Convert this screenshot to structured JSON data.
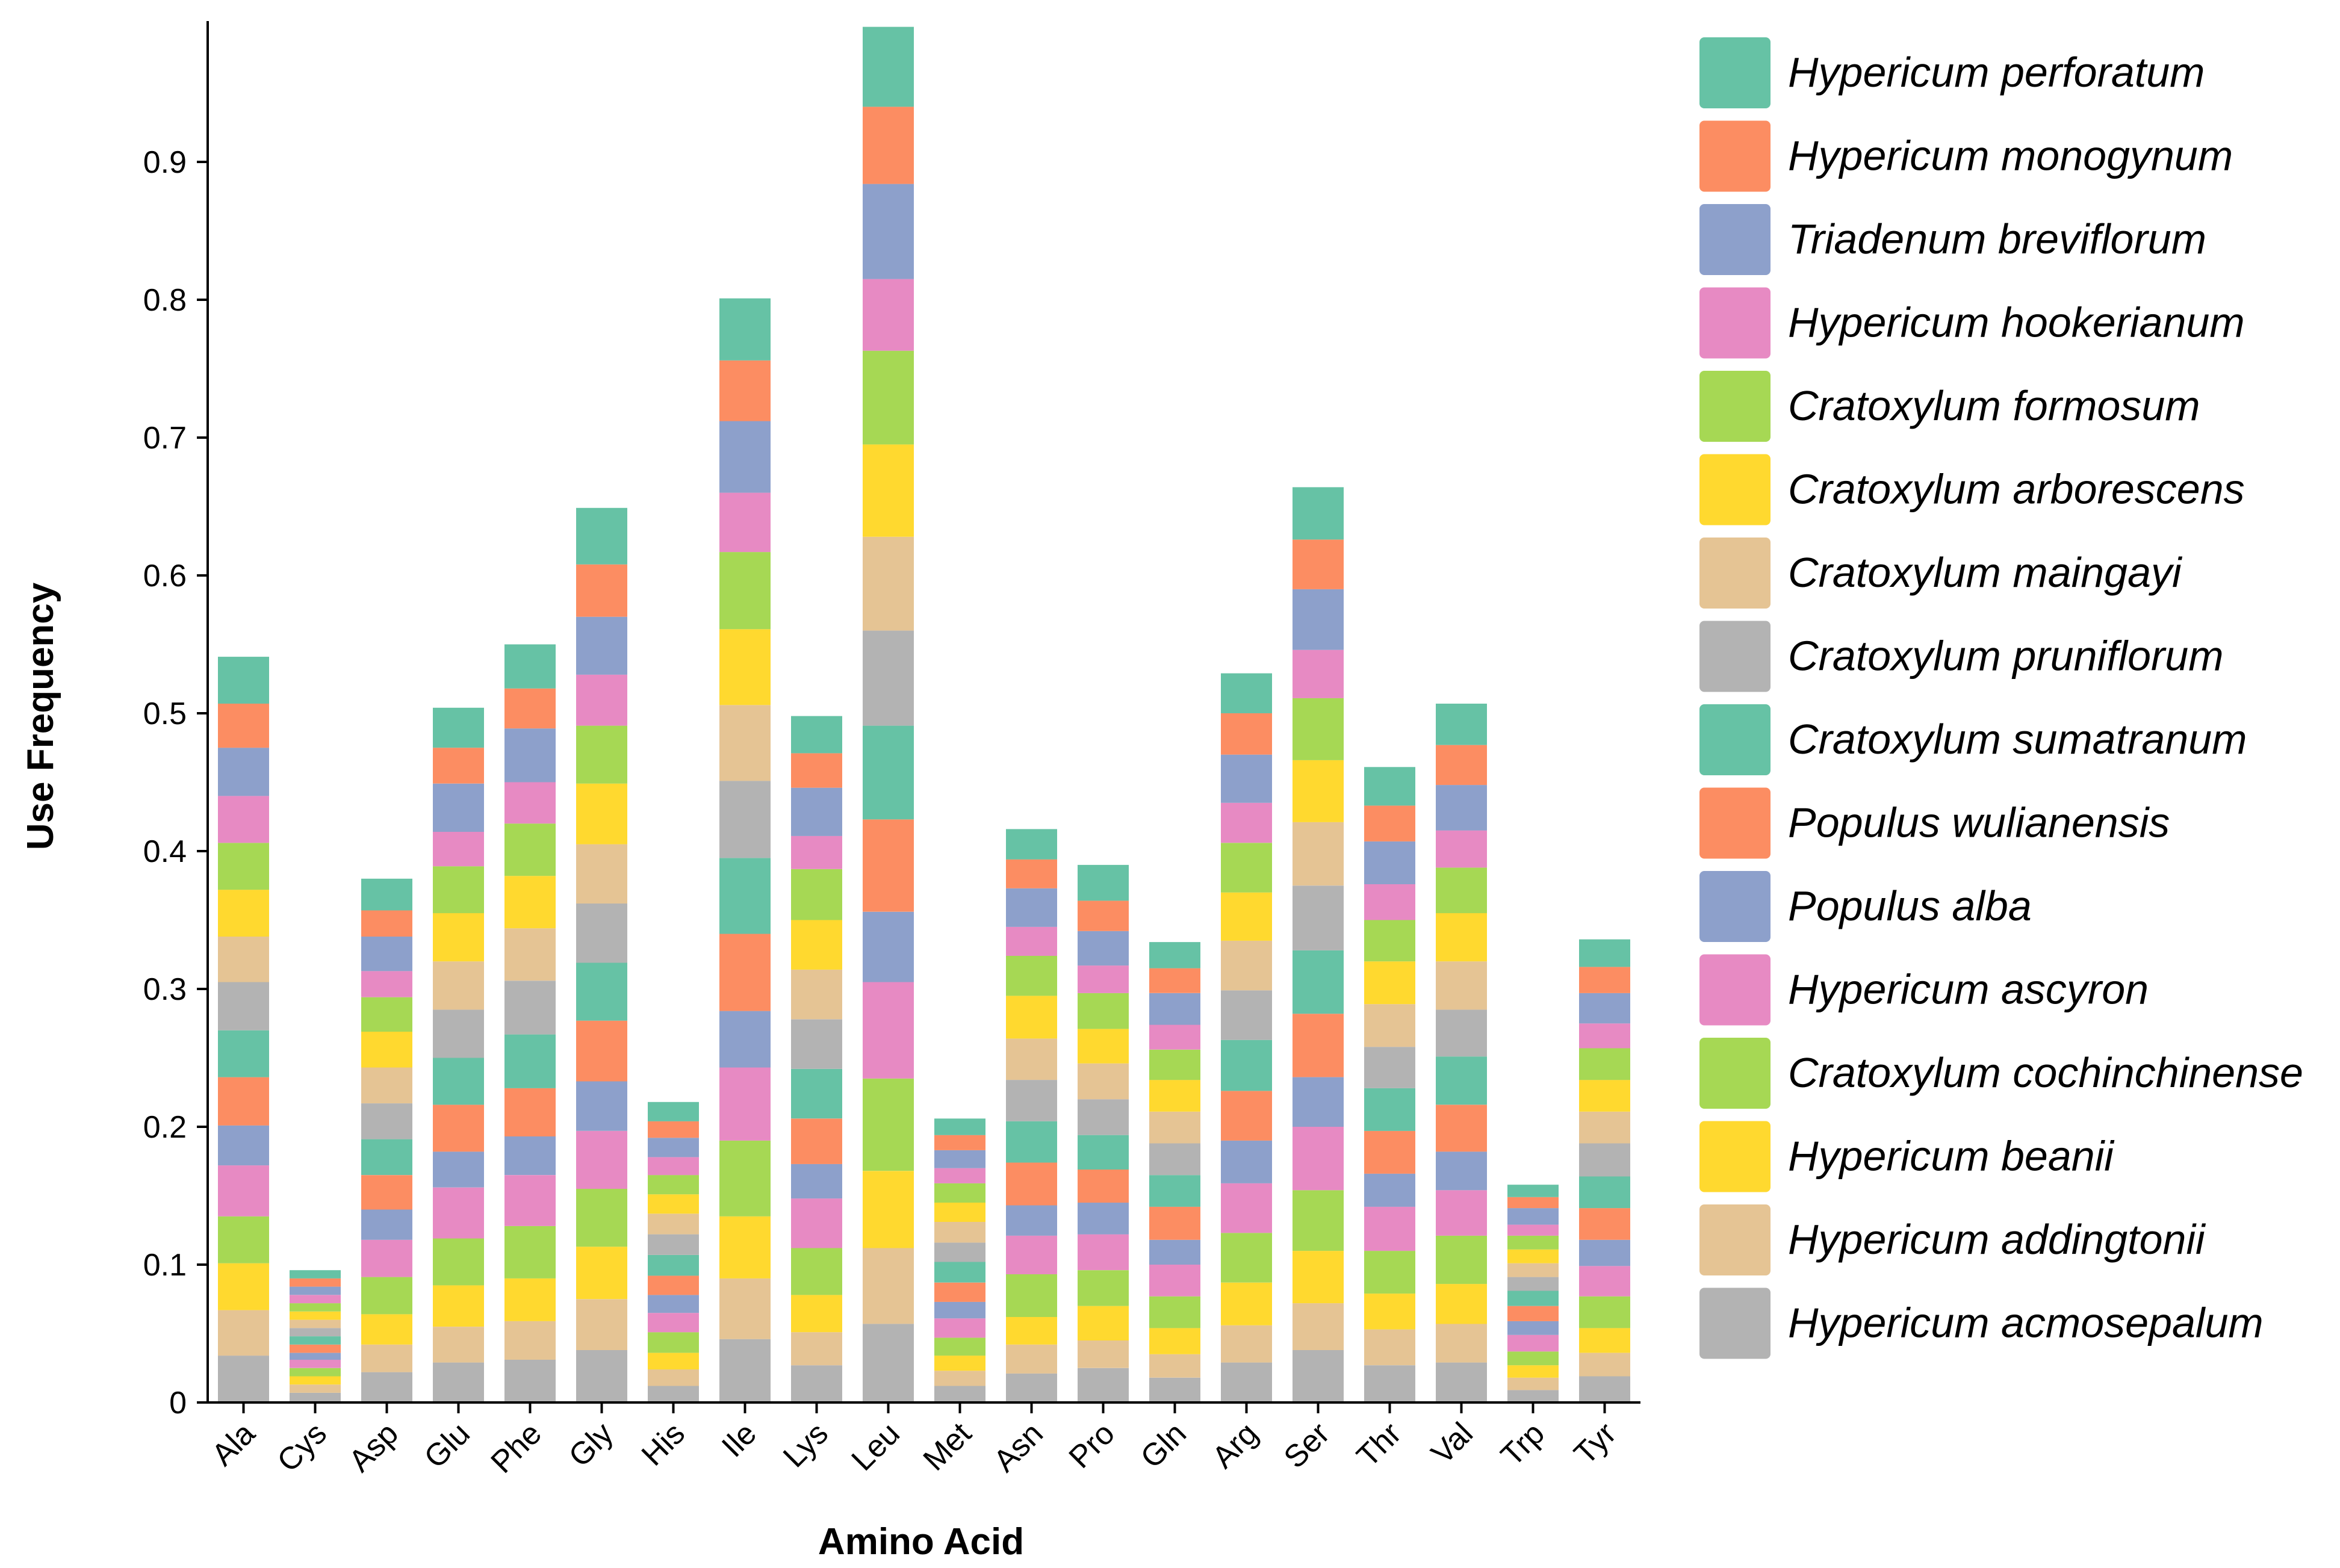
{
  "chart_data": {
    "type": "bar",
    "stacked": true,
    "xlabel": "Amino Acid",
    "ylabel": "Use Frequency",
    "ylim": [
      0,
      1.0
    ],
    "yticks": [
      0,
      0.1,
      0.2,
      0.3,
      0.4,
      0.5,
      0.6,
      0.7,
      0.8,
      0.9
    ],
    "ytick_labels": [
      "0",
      "0.1",
      "0.2",
      "0.3",
      "0.4",
      "0.5",
      "0.6",
      "0.7",
      "0.8",
      "0.9"
    ],
    "legend_position": "right",
    "categories": [
      "Ala",
      "Cys",
      "Asp",
      "Glu",
      "Phe",
      "Gly",
      "His",
      "Ile",
      "Lys",
      "Leu",
      "Met",
      "Asn",
      "Pro",
      "Gln",
      "Arg",
      "Ser",
      "Thr",
      "Val",
      "Trp",
      "Tyr"
    ],
    "series": [
      {
        "name": "Hypericum acmosepalum",
        "color": "#b3b3b3",
        "values": [
          0.034,
          0.007,
          0.022,
          0.029,
          0.031,
          0.038,
          0.012,
          0.046,
          0.027,
          0.057,
          0.012,
          0.021,
          0.025,
          0.018,
          0.029,
          0.038,
          0.027,
          0.029,
          0.009,
          0.019
        ]
      },
      {
        "name": "Hypericum addingtonii",
        "color": "#e5c494",
        "values": [
          0.033,
          0.006,
          0.02,
          0.026,
          0.028,
          0.037,
          0.012,
          0.044,
          0.024,
          0.055,
          0.011,
          0.021,
          0.02,
          0.017,
          0.027,
          0.034,
          0.026,
          0.028,
          0.009,
          0.017
        ]
      },
      {
        "name": "Hypericum beanii",
        "color": "#ffd92f",
        "values": [
          0.034,
          0.006,
          0.022,
          0.03,
          0.031,
          0.038,
          0.012,
          0.045,
          0.027,
          0.056,
          0.011,
          0.02,
          0.025,
          0.019,
          0.031,
          0.038,
          0.026,
          0.029,
          0.009,
          0.018
        ]
      },
      {
        "name": "Cratoxylum cochinchinense",
        "color": "#a6d854",
        "values": [
          0.034,
          0.006,
          0.027,
          0.034,
          0.038,
          0.042,
          0.015,
          0.055,
          0.034,
          0.067,
          0.013,
          0.031,
          0.026,
          0.023,
          0.036,
          0.044,
          0.031,
          0.035,
          0.01,
          0.023
        ]
      },
      {
        "name": "Hypericum ascyron",
        "color": "#e78ac3",
        "values": [
          0.037,
          0.006,
          0.027,
          0.037,
          0.037,
          0.042,
          0.014,
          0.053,
          0.036,
          0.07,
          0.014,
          0.028,
          0.026,
          0.023,
          0.036,
          0.046,
          0.032,
          0.033,
          0.012,
          0.022
        ]
      },
      {
        "name": "Populus alba",
        "color": "#8da0cb",
        "values": [
          0.029,
          0.005,
          0.022,
          0.026,
          0.028,
          0.036,
          0.013,
          0.041,
          0.025,
          0.051,
          0.012,
          0.022,
          0.023,
          0.018,
          0.031,
          0.036,
          0.024,
          0.028,
          0.01,
          0.019
        ]
      },
      {
        "name": "Populus wulianensis",
        "color": "#fc8d62",
        "values": [
          0.035,
          0.006,
          0.025,
          0.034,
          0.035,
          0.044,
          0.014,
          0.056,
          0.033,
          0.067,
          0.014,
          0.031,
          0.024,
          0.024,
          0.036,
          0.046,
          0.031,
          0.034,
          0.011,
          0.023
        ]
      },
      {
        "name": "Cratoxylum sumatranum",
        "color": "#66c2a5",
        "values": [
          0.034,
          0.006,
          0.026,
          0.034,
          0.039,
          0.042,
          0.015,
          0.055,
          0.036,
          0.068,
          0.015,
          0.03,
          0.025,
          0.023,
          0.037,
          0.046,
          0.031,
          0.035,
          0.011,
          0.023
        ]
      },
      {
        "name": "Cratoxylum pruniflorum",
        "color": "#b3b3b3",
        "values": [
          0.035,
          0.006,
          0.026,
          0.035,
          0.039,
          0.043,
          0.015,
          0.056,
          0.036,
          0.069,
          0.014,
          0.03,
          0.026,
          0.023,
          0.036,
          0.047,
          0.03,
          0.034,
          0.01,
          0.024
        ]
      },
      {
        "name": "Cratoxylum maingayi",
        "color": "#e5c494",
        "values": [
          0.033,
          0.006,
          0.026,
          0.035,
          0.038,
          0.043,
          0.015,
          0.055,
          0.036,
          0.068,
          0.015,
          0.03,
          0.026,
          0.023,
          0.036,
          0.046,
          0.031,
          0.035,
          0.01,
          0.023
        ]
      },
      {
        "name": "Cratoxylum arborescens",
        "color": "#ffd92f",
        "values": [
          0.034,
          0.006,
          0.026,
          0.035,
          0.038,
          0.044,
          0.014,
          0.055,
          0.036,
          0.067,
          0.014,
          0.031,
          0.025,
          0.023,
          0.035,
          0.045,
          0.031,
          0.035,
          0.01,
          0.023
        ]
      },
      {
        "name": "Cratoxylum formosum",
        "color": "#a6d854",
        "values": [
          0.034,
          0.006,
          0.025,
          0.034,
          0.038,
          0.042,
          0.014,
          0.056,
          0.037,
          0.068,
          0.014,
          0.029,
          0.026,
          0.022,
          0.036,
          0.045,
          0.03,
          0.033,
          0.01,
          0.023
        ]
      },
      {
        "name": "Hypericum hookerianum",
        "color": "#e78ac3",
        "values": [
          0.034,
          0.006,
          0.019,
          0.025,
          0.03,
          0.037,
          0.013,
          0.043,
          0.024,
          0.052,
          0.011,
          0.021,
          0.02,
          0.018,
          0.029,
          0.035,
          0.026,
          0.027,
          0.008,
          0.018
        ]
      },
      {
        "name": "Triadenum breviflorum",
        "color": "#8da0cb",
        "values": [
          0.035,
          0.006,
          0.025,
          0.035,
          0.039,
          0.042,
          0.014,
          0.052,
          0.035,
          0.069,
          0.013,
          0.028,
          0.025,
          0.023,
          0.035,
          0.044,
          0.031,
          0.033,
          0.012,
          0.022
        ]
      },
      {
        "name": "Hypericum monogynum",
        "color": "#fc8d62",
        "values": [
          0.032,
          0.006,
          0.019,
          0.026,
          0.029,
          0.038,
          0.012,
          0.044,
          0.025,
          0.056,
          0.011,
          0.021,
          0.022,
          0.018,
          0.03,
          0.036,
          0.026,
          0.029,
          0.008,
          0.019
        ]
      },
      {
        "name": "Hypericum perforatum",
        "color": "#66c2a5",
        "values": [
          0.034,
          0.006,
          0.023,
          0.029,
          0.032,
          0.041,
          0.014,
          0.045,
          0.027,
          0.058,
          0.012,
          0.022,
          0.026,
          0.019,
          0.029,
          0.038,
          0.028,
          0.03,
          0.009,
          0.02
        ]
      }
    ]
  }
}
